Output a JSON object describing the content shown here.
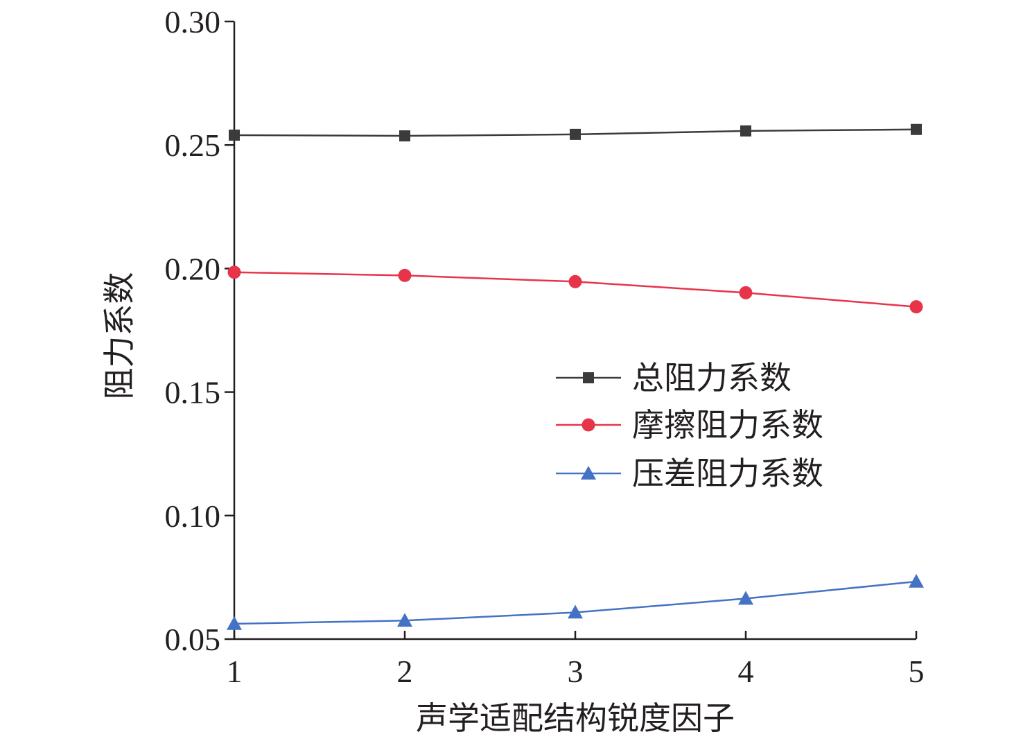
{
  "chart_data": {
    "type": "line",
    "title": "",
    "xlabel": "声学适配结构锐度因子",
    "ylabel": "阻力系数",
    "x": [
      1,
      2,
      3,
      4,
      5
    ],
    "xticks": [
      "1",
      "2",
      "3",
      "4",
      "5"
    ],
    "xlim": [
      1,
      5
    ],
    "ylim": [
      0.05,
      0.3
    ],
    "yticks": [
      "0.05",
      "0.10",
      "0.15",
      "0.20",
      "0.25",
      "0.30"
    ],
    "grid": false,
    "legend_position": "center-right",
    "series": [
      {
        "name": "总阻力系数",
        "values": [
          0.254,
          0.2537,
          0.2543,
          0.2557,
          0.2563
        ],
        "color": "#3b3b3b",
        "marker": "square"
      },
      {
        "name": "摩擦阻力系数",
        "values": [
          0.1985,
          0.1972,
          0.1947,
          0.1902,
          0.1845
        ],
        "color": "#e8344a",
        "marker": "circle"
      },
      {
        "name": "压差阻力系数",
        "values": [
          0.0562,
          0.0575,
          0.0608,
          0.0664,
          0.0733
        ],
        "color": "#4472c4",
        "marker": "triangle"
      }
    ]
  }
}
